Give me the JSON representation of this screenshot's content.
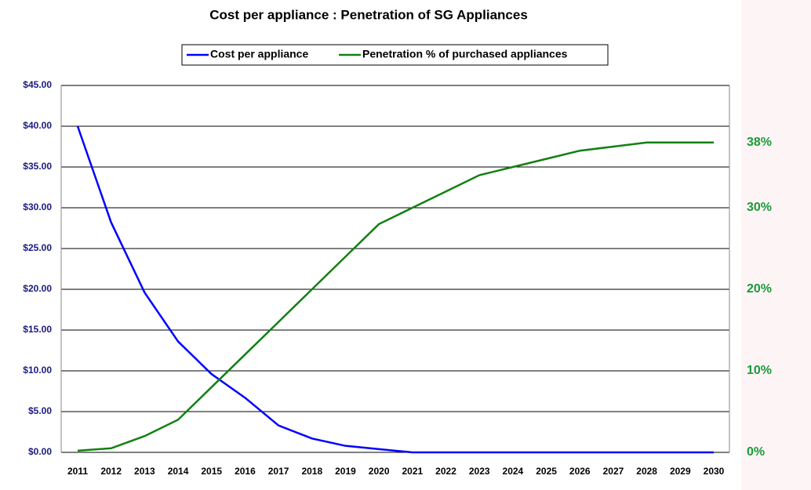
{
  "chart_data": {
    "type": "line",
    "title": "Cost per appliance : Penetration of SG Appliances",
    "categories": [
      "2011",
      "2012",
      "2013",
      "2014",
      "2015",
      "2016",
      "2017",
      "2018",
      "2019",
      "2020",
      "2021",
      "2022",
      "2023",
      "2024",
      "2025",
      "2026",
      "2027",
      "2028",
      "2029",
      "2030"
    ],
    "series": [
      {
        "name": "Cost per appliance",
        "color": "#0000ff",
        "axis": "y",
        "values": [
          40,
          28.2,
          19.6,
          13.6,
          9.6,
          6.7,
          3.3,
          1.7,
          0.8,
          0.4,
          0,
          0,
          0,
          0,
          0,
          0,
          0,
          0,
          0,
          0
        ]
      },
      {
        "name": "Penetration % of purchased appliances",
        "color": "#128012",
        "axis": "y2",
        "values": [
          0.2,
          0.5,
          2,
          4,
          8,
          12,
          16,
          20,
          24,
          28,
          30,
          32,
          34,
          35,
          36,
          37,
          37.5,
          38,
          38,
          38
        ]
      }
    ],
    "ylim": [
      0,
      45
    ],
    "yticks": [
      {
        "value": 0,
        "label": "$0.00"
      },
      {
        "value": 5,
        "label": "$5.00"
      },
      {
        "value": 10,
        "label": "$10.00"
      },
      {
        "value": 15,
        "label": "$15.00"
      },
      {
        "value": 20,
        "label": "$20.00"
      },
      {
        "value": 25,
        "label": "$25.00"
      },
      {
        "value": 30,
        "label": "$30.00"
      },
      {
        "value": 35,
        "label": "$35.00"
      },
      {
        "value": 40,
        "label": "$40.00"
      },
      {
        "value": 45,
        "label": "$45.00"
      }
    ],
    "y2lim": [
      0,
      45
    ],
    "y2ticks": [
      {
        "value": 0,
        "label": "0%"
      },
      {
        "value": 10,
        "label": "10%"
      },
      {
        "value": 20,
        "label": "20%"
      },
      {
        "value": 30,
        "label": "30%"
      },
      {
        "value": 38,
        "label": "38%"
      }
    ],
    "grid": true,
    "legend": "top"
  }
}
